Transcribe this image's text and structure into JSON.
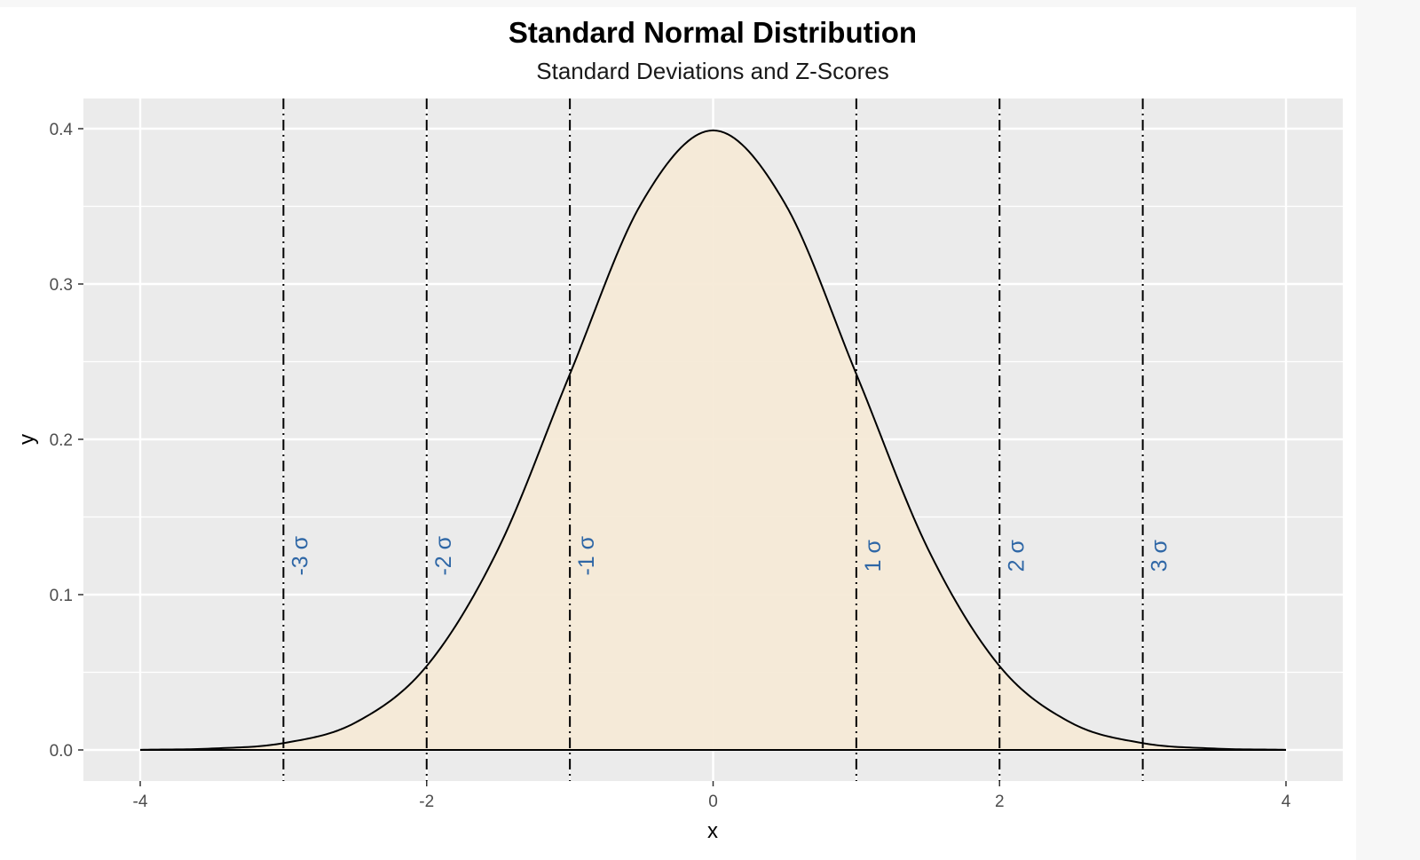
{
  "chart_data": {
    "type": "area",
    "title": "Standard Normal Distribution",
    "subtitle": "Standard Deviations and Z-Scores",
    "xlabel": "x",
    "ylabel": "y",
    "xlim": [
      -4,
      4
    ],
    "ylim": [
      0,
      0.4
    ],
    "x_ticks": [
      -4,
      -2,
      0,
      2,
      4
    ],
    "x_tick_labels": [
      "-4",
      "-2",
      "0",
      "2",
      "4"
    ],
    "y_ticks": [
      0.0,
      0.1,
      0.2,
      0.3,
      0.4
    ],
    "y_tick_labels": [
      "0.0",
      "0.1",
      "0.2",
      "0.3",
      "0.4"
    ],
    "grid": true,
    "curve": {
      "x": [
        -4.0,
        -3.5,
        -3.0,
        -2.5,
        -2.0,
        -1.5,
        -1.0,
        -0.5,
        0.0,
        0.5,
        1.0,
        1.5,
        2.0,
        2.5,
        3.0,
        3.5,
        4.0
      ],
      "y": [
        0.0001,
        0.0009,
        0.0044,
        0.0175,
        0.054,
        0.1295,
        0.242,
        0.3521,
        0.3989,
        0.3521,
        0.242,
        0.1295,
        0.054,
        0.0175,
        0.0044,
        0.0009,
        0.0001
      ]
    },
    "sd_lines": [
      {
        "x": -3,
        "label": "-3 σ"
      },
      {
        "x": -2,
        "label": "-2 σ"
      },
      {
        "x": -1,
        "label": "-1 σ"
      },
      {
        "x": 1,
        "label": "1 σ"
      },
      {
        "x": 2,
        "label": "2 σ"
      },
      {
        "x": 3,
        "label": "3 σ"
      }
    ],
    "sd_label_y": 0.125,
    "colors": {
      "panel": "#ebebeb",
      "grid": "#ffffff",
      "fill": "#f5e9d6",
      "curve": "#000000",
      "sd_line": "#000000",
      "sd_label": "#2f67a6"
    }
  }
}
